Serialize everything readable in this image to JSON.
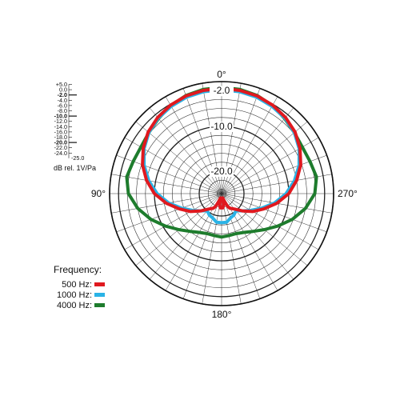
{
  "chart_data": {
    "type": "polar",
    "angle_labels": [
      "0°",
      "90°",
      "180°",
      "270°"
    ],
    "ring_labels": [
      "-2.0",
      "-10.0",
      "-20.0"
    ],
    "r_range": [
      -25,
      0
    ],
    "scale": {
      "ticks": [
        "+5.0",
        "0.0",
        "-2.0",
        "-4.0",
        "-6.0",
        "-8.0",
        "-10.0",
        "-12.0",
        "-14.0",
        "-16.0",
        "-18.0",
        "-20.0",
        "-22.0",
        "-24.0"
      ],
      "bottom_label": "-25.0",
      "unit": "dB rel. 1V/Pa"
    },
    "legend_title": "Frequency:",
    "series": [
      {
        "name": "500 Hz:",
        "color": "#e0191f",
        "points": [
          [
            0,
            -1.5
          ],
          [
            10,
            -1.6
          ],
          [
            20,
            -1.8
          ],
          [
            30,
            -2.2
          ],
          [
            40,
            -2.8
          ],
          [
            50,
            -3.6
          ],
          [
            60,
            -4.8
          ],
          [
            70,
            -6.2
          ],
          [
            80,
            -8.0
          ],
          [
            90,
            -10.0
          ],
          [
            100,
            -12.5
          ],
          [
            110,
            -15.0
          ],
          [
            120,
            -17.0
          ],
          [
            130,
            -19.0
          ],
          [
            140,
            -20.5
          ],
          [
            150,
            -21.2
          ],
          [
            155,
            -21.8
          ],
          [
            160,
            -23.2
          ],
          [
            165,
            -24.0
          ],
          [
            170,
            -22.5
          ],
          [
            175,
            -21.8
          ],
          [
            180,
            -21.8
          ],
          [
            185,
            -21.8
          ],
          [
            190,
            -22.5
          ],
          [
            195,
            -24.0
          ],
          [
            200,
            -23.2
          ],
          [
            205,
            -21.8
          ],
          [
            210,
            -21.2
          ],
          [
            220,
            -20.5
          ],
          [
            230,
            -19.0
          ],
          [
            240,
            -17.0
          ],
          [
            250,
            -15.0
          ],
          [
            260,
            -12.5
          ],
          [
            270,
            -10.0
          ],
          [
            280,
            -8.0
          ],
          [
            290,
            -6.2
          ],
          [
            300,
            -4.8
          ],
          [
            310,
            -3.6
          ],
          [
            320,
            -2.8
          ],
          [
            330,
            -2.2
          ],
          [
            340,
            -1.8
          ],
          [
            350,
            -1.6
          ]
        ]
      },
      {
        "name": "1000 Hz:",
        "color": "#2ab3e6",
        "points": [
          [
            0,
            -1.8
          ],
          [
            10,
            -1.9
          ],
          [
            20,
            -2.1
          ],
          [
            30,
            -2.5
          ],
          [
            40,
            -3.0
          ],
          [
            50,
            -3.8
          ],
          [
            60,
            -5.0
          ],
          [
            70,
            -6.6
          ],
          [
            80,
            -8.5
          ],
          [
            90,
            -10.6
          ],
          [
            100,
            -13.0
          ],
          [
            110,
            -15.5
          ],
          [
            120,
            -17.5
          ],
          [
            130,
            -19.0
          ],
          [
            140,
            -20.0
          ],
          [
            150,
            -19.5
          ],
          [
            160,
            -19.2
          ],
          [
            170,
            -18.5
          ],
          [
            180,
            -18.5
          ],
          [
            190,
            -18.5
          ],
          [
            200,
            -19.2
          ],
          [
            210,
            -19.5
          ],
          [
            220,
            -20.0
          ],
          [
            230,
            -19.0
          ],
          [
            240,
            -17.5
          ],
          [
            250,
            -15.5
          ],
          [
            260,
            -13.0
          ],
          [
            270,
            -10.6
          ],
          [
            280,
            -8.5
          ],
          [
            290,
            -6.6
          ],
          [
            300,
            -5.0
          ],
          [
            310,
            -3.8
          ],
          [
            320,
            -3.0
          ],
          [
            330,
            -2.5
          ],
          [
            340,
            -2.1
          ],
          [
            350,
            -1.9
          ]
        ]
      },
      {
        "name": "4000 Hz:",
        "color": "#1e7c2d",
        "points": [
          [
            0,
            -1.3
          ],
          [
            10,
            -1.4
          ],
          [
            20,
            -1.7
          ],
          [
            30,
            -2.3
          ],
          [
            40,
            -3.1
          ],
          [
            50,
            -3.8
          ],
          [
            60,
            -4.2
          ],
          [
            70,
            -4.0
          ],
          [
            80,
            -3.5
          ],
          [
            90,
            -4.2
          ],
          [
            100,
            -6.0
          ],
          [
            110,
            -8.2
          ],
          [
            120,
            -10.5
          ],
          [
            130,
            -12.5
          ],
          [
            140,
            -14.0
          ],
          [
            150,
            -15.0
          ],
          [
            160,
            -15.5
          ],
          [
            170,
            -15.5
          ],
          [
            180,
            -15.3
          ],
          [
            190,
            -15.5
          ],
          [
            200,
            -15.5
          ],
          [
            210,
            -15.0
          ],
          [
            220,
            -14.0
          ],
          [
            230,
            -12.5
          ],
          [
            240,
            -10.5
          ],
          [
            250,
            -8.2
          ],
          [
            260,
            -6.0
          ],
          [
            270,
            -4.2
          ],
          [
            280,
            -3.5
          ],
          [
            290,
            -4.0
          ],
          [
            300,
            -4.2
          ],
          [
            310,
            -3.8
          ],
          [
            320,
            -3.1
          ],
          [
            330,
            -2.3
          ],
          [
            340,
            -1.7
          ],
          [
            350,
            -1.4
          ]
        ]
      }
    ]
  }
}
